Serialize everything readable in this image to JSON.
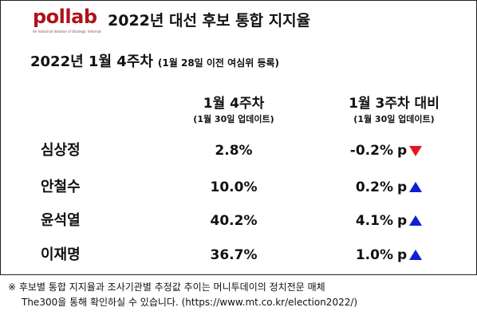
{
  "brand": {
    "logo_text": "pollab",
    "tagline": "An Industrial Solution of Strategic Information",
    "logo_color": "#b0121b"
  },
  "header": {
    "title": "2022년 대선 후보 통합 지지율"
  },
  "subtitle": {
    "main": "2022년 1월 4주차",
    "note": "(1월 28일 이전 여심위 등록)"
  },
  "columns": [
    {
      "title": "1월 4주차",
      "sub": "(1월 30일 업데이트)"
    },
    {
      "title": "1월 3주차 대비",
      "sub": "(1월 30일 업데이트)"
    }
  ],
  "candidates": [
    {
      "name": "심상정",
      "support": "2.8%",
      "change": "-0.2%",
      "unit": "p",
      "direction": "down",
      "arrow_color": "#e8141c"
    },
    {
      "name": "안철수",
      "support": "10.0%",
      "change": "0.2%",
      "unit": "p",
      "direction": "up",
      "arrow_color": "#1020d0"
    },
    {
      "name": "윤석열",
      "support": "40.2%",
      "change": "4.1%",
      "unit": "p",
      "direction": "up",
      "arrow_color": "#1020d0"
    },
    {
      "name": "이재명",
      "support": "36.7%",
      "change": "1.0%",
      "unit": "p",
      "direction": "up",
      "arrow_color": "#1020d0"
    }
  ],
  "footnote": {
    "line1": "※ 후보별 통합 지지율과 조사기관별 추정값 추이는 머니투데이의 정치전문 매체",
    "line2": "The300을 통해 확인하실 수 있습니다. (https://www.mt.co.kr/election2022/)"
  }
}
